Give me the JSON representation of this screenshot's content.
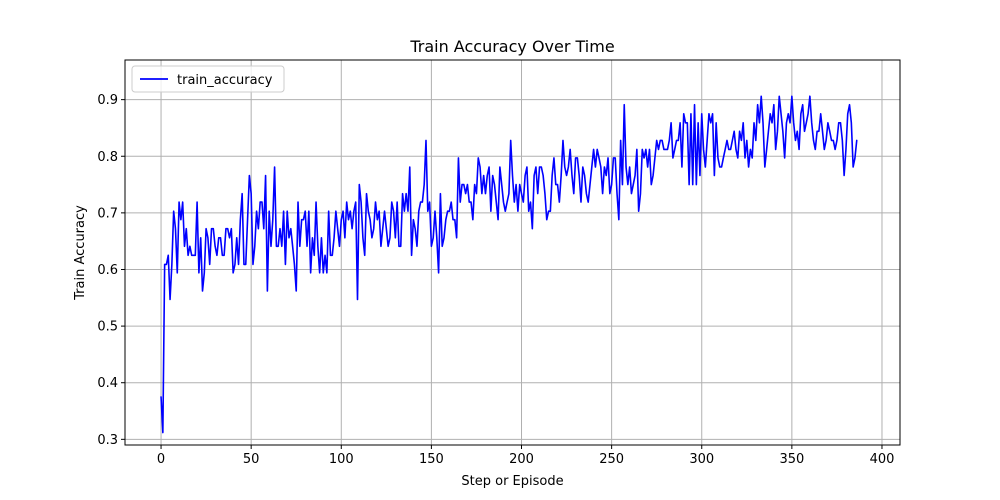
{
  "chart_data": {
    "type": "line",
    "title": "Train Accuracy Over Time",
    "xlabel": "Step or Episode",
    "ylabel": "Train Accuracy",
    "xlim": [
      -20,
      410
    ],
    "ylim": [
      0.29,
      0.97
    ],
    "xticks": [
      0,
      50,
      100,
      150,
      200,
      250,
      300,
      350,
      400
    ],
    "yticks": [
      0.3,
      0.4,
      0.5,
      0.6,
      0.7,
      0.8,
      0.9
    ],
    "grid": true,
    "legend": {
      "placement": "top-left"
    },
    "series": [
      {
        "name": "train_accuracy",
        "color": "#0000ff",
        "x_start": 0,
        "x_step": 1,
        "values": [
          0.375,
          0.312,
          0.609,
          0.609,
          0.625,
          0.547,
          0.609,
          0.703,
          0.672,
          0.594,
          0.719,
          0.688,
          0.719,
          0.641,
          0.672,
          0.625,
          0.641,
          0.625,
          0.625,
          0.625,
          0.719,
          0.594,
          0.656,
          0.562,
          0.594,
          0.672,
          0.656,
          0.609,
          0.672,
          0.672,
          0.641,
          0.625,
          0.656,
          0.656,
          0.625,
          0.625,
          0.672,
          0.672,
          0.656,
          0.672,
          0.594,
          0.609,
          0.656,
          0.609,
          0.688,
          0.734,
          0.609,
          0.609,
          0.688,
          0.766,
          0.734,
          0.609,
          0.641,
          0.703,
          0.672,
          0.719,
          0.719,
          0.672,
          0.766,
          0.562,
          0.703,
          0.641,
          0.688,
          0.781,
          0.641,
          0.641,
          0.672,
          0.641,
          0.703,
          0.609,
          0.703,
          0.656,
          0.672,
          0.641,
          0.609,
          0.562,
          0.719,
          0.641,
          0.688,
          0.688,
          0.703,
          0.641,
          0.703,
          0.594,
          0.656,
          0.625,
          0.719,
          0.641,
          0.594,
          0.656,
          0.594,
          0.625,
          0.594,
          0.703,
          0.625,
          0.625,
          0.656,
          0.703,
          0.672,
          0.641,
          0.688,
          0.703,
          0.656,
          0.719,
          0.688,
          0.703,
          0.672,
          0.703,
          0.719,
          0.547,
          0.75,
          0.719,
          0.656,
          0.625,
          0.734,
          0.703,
          0.688,
          0.656,
          0.672,
          0.719,
          0.688,
          0.703,
          0.641,
          0.672,
          0.703,
          0.672,
          0.641,
          0.656,
          0.719,
          0.703,
          0.656,
          0.719,
          0.641,
          0.641,
          0.734,
          0.703,
          0.734,
          0.703,
          0.781,
          0.625,
          0.688,
          0.672,
          0.641,
          0.703,
          0.719,
          0.719,
          0.75,
          0.828,
          0.703,
          0.719,
          0.641,
          0.656,
          0.703,
          0.656,
          0.594,
          0.734,
          0.641,
          0.656,
          0.688,
          0.703,
          0.703,
          0.719,
          0.688,
          0.688,
          0.656,
          0.797,
          0.719,
          0.75,
          0.75,
          0.734,
          0.75,
          0.719,
          0.719,
          0.688,
          0.75,
          0.734,
          0.797,
          0.781,
          0.734,
          0.766,
          0.734,
          0.766,
          0.781,
          0.703,
          0.766,
          0.75,
          0.719,
          0.688,
          0.781,
          0.75,
          0.719,
          0.703,
          0.719,
          0.734,
          0.828,
          0.766,
          0.719,
          0.75,
          0.703,
          0.75,
          0.734,
          0.719,
          0.766,
          0.781,
          0.703,
          0.719,
          0.672,
          0.766,
          0.781,
          0.734,
          0.781,
          0.781,
          0.766,
          0.734,
          0.688,
          0.703,
          0.703,
          0.766,
          0.797,
          0.75,
          0.75,
          0.719,
          0.766,
          0.828,
          0.781,
          0.766,
          0.781,
          0.812,
          0.766,
          0.734,
          0.797,
          0.797,
          0.766,
          0.719,
          0.781,
          0.766,
          0.734,
          0.719,
          0.75,
          0.781,
          0.812,
          0.781,
          0.812,
          0.797,
          0.781,
          0.734,
          0.781,
          0.766,
          0.797,
          0.734,
          0.75,
          0.797,
          0.797,
          0.734,
          0.688,
          0.828,
          0.75,
          0.891,
          0.781,
          0.75,
          0.781,
          0.734,
          0.75,
          0.766,
          0.812,
          0.703,
          0.734,
          0.812,
          0.797,
          0.812,
          0.781,
          0.812,
          0.75,
          0.766,
          0.797,
          0.828,
          0.812,
          0.828,
          0.828,
          0.812,
          0.812,
          0.812,
          0.828,
          0.859,
          0.797,
          0.812,
          0.828,
          0.828,
          0.859,
          0.781,
          0.875,
          0.859,
          0.859,
          0.75,
          0.875,
          0.75,
          0.891,
          0.75,
          0.859,
          0.766,
          0.875,
          0.812,
          0.781,
          0.828,
          0.875,
          0.859,
          0.875,
          0.766,
          0.859,
          0.797,
          0.781,
          0.781,
          0.797,
          0.812,
          0.828,
          0.812,
          0.812,
          0.828,
          0.844,
          0.812,
          0.797,
          0.844,
          0.828,
          0.859,
          0.797,
          0.828,
          0.781,
          0.812,
          0.797,
          0.859,
          0.828,
          0.891,
          0.859,
          0.906,
          0.859,
          0.781,
          0.812,
          0.844,
          0.875,
          0.859,
          0.891,
          0.812,
          0.844,
          0.906,
          0.875,
          0.844,
          0.797,
          0.859,
          0.875,
          0.859,
          0.906,
          0.859,
          0.828,
          0.844,
          0.812,
          0.875,
          0.891,
          0.844,
          0.859,
          0.875,
          0.906,
          0.859,
          0.828,
          0.812,
          0.844,
          0.844,
          0.875,
          0.844,
          0.812,
          0.828,
          0.859,
          0.844,
          0.828,
          0.828,
          0.812,
          0.828,
          0.859,
          0.859,
          0.828,
          0.766,
          0.812,
          0.875,
          0.891,
          0.859,
          0.781,
          0.797,
          0.828
        ]
      }
    ]
  }
}
